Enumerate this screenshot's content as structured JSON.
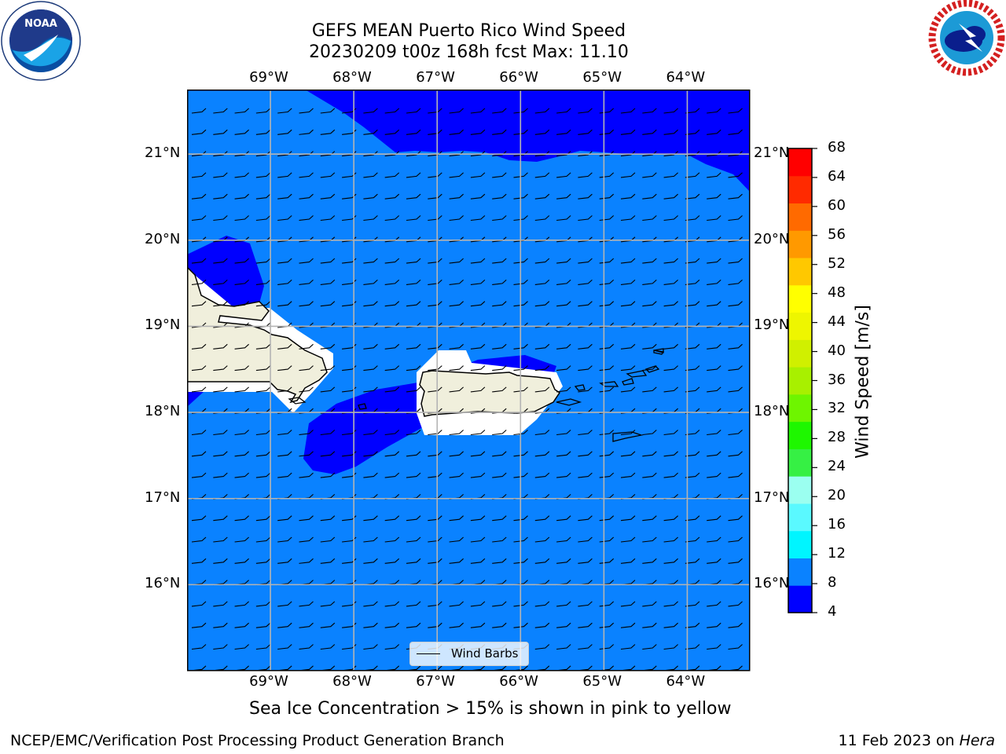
{
  "header": {
    "title_line1": "GEFS MEAN Puerto Rico Wind Speed",
    "title_line2": "20230209 t00z 168h fcst   Max: 11.10"
  },
  "logos": {
    "left": "noaa-logo",
    "right": "nws-logo"
  },
  "map": {
    "lon_labels": [
      "69°W",
      "68°W",
      "67°W",
      "66°W",
      "65°W",
      "64°W"
    ],
    "lat_labels": [
      "21°N",
      "20°N",
      "19°N",
      "18°N",
      "17°N",
      "16°N"
    ],
    "lon_range": [
      -70.0,
      -63.25
    ],
    "lat_range": [
      15.0,
      21.75
    ],
    "colors": {
      "base": "#0a82ff",
      "low": "#0000ff",
      "land": "#f0efdc",
      "mask": "#ffffff",
      "grid": "#b4b4b4"
    }
  },
  "legend": {
    "label": "Wind Barbs"
  },
  "colorbar": {
    "label": "Wind Speed [m/s]",
    "ticks": [
      "68",
      "64",
      "60",
      "56",
      "52",
      "48",
      "44",
      "40",
      "36",
      "32",
      "28",
      "24",
      "20",
      "16",
      "12",
      "8",
      "4"
    ],
    "colors": [
      "#0000ff",
      "#0a82ff",
      "#00f5ff",
      "#5af9ff",
      "#9bfff0",
      "#36f044",
      "#1ef700",
      "#6ef500",
      "#a8f000",
      "#d0f000",
      "#eef600",
      "#ffff00",
      "#ffc800",
      "#ff9900",
      "#ff6a00",
      "#ff2a00",
      "#ff0000"
    ]
  },
  "note": "Sea Ice Concentration > 15% is shown in pink to yellow",
  "footer": {
    "left": "NCEP/EMC/Verification Post Processing Product Generation Branch",
    "date": "11 Feb 2023 on",
    "machine": "Hera"
  }
}
